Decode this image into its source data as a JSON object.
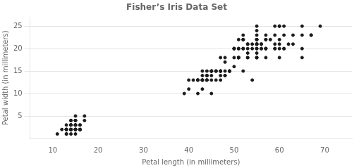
{
  "chart_data": {
    "type": "scatter",
    "title": "Fisher’s Iris Data Set",
    "xlabel": "Petal length (in millimeters)",
    "ylabel": "Petal width (in millimeters)",
    "xlim": [
      5,
      76
    ],
    "ylim": [
      0,
      27
    ],
    "xticks": [
      10,
      20,
      30,
      40,
      50,
      60,
      70
    ],
    "yticks": [
      5,
      10,
      15,
      20,
      25
    ],
    "grid": "y",
    "color": "#1a1a1a",
    "x": [
      14,
      14,
      13,
      15,
      14,
      17,
      14,
      15,
      14,
      15,
      15,
      16,
      14,
      11,
      13,
      15,
      14,
      17,
      15,
      15,
      13,
      15,
      16,
      14,
      15,
      12,
      13,
      15,
      15,
      13,
      14,
      16,
      13,
      14,
      16,
      14,
      15,
      15,
      13,
      14,
      14,
      14,
      16,
      13,
      15,
      16,
      16,
      15,
      15,
      14,
      47,
      45,
      49,
      41,
      48,
      43,
      46,
      40,
      45,
      42,
      39,
      45,
      40,
      46,
      44,
      48,
      49,
      43,
      49,
      43,
      47,
      45,
      45,
      43,
      44,
      46,
      47,
      48,
      43,
      46,
      44,
      50,
      47,
      45,
      42,
      44,
      42,
      44,
      48,
      44,
      49,
      45,
      42,
      43,
      44,
      45,
      47,
      47,
      43,
      48,
      60,
      57,
      56,
      55,
      55,
      52,
      52,
      55,
      60,
      55,
      55,
      50,
      55,
      52,
      53,
      56,
      53,
      51,
      53,
      51,
      52,
      51,
      53,
      55,
      58,
      55,
      51,
      55,
      50,
      51,
      53,
      55,
      55,
      54,
      53,
      50,
      52,
      60,
      57,
      54,
      56,
      47,
      55,
      55,
      55,
      50,
      57,
      59,
      61,
      56,
      57,
      51,
      55,
      55,
      57,
      61,
      59,
      65,
      67,
      60,
      65,
      69,
      61,
      51,
      65,
      59,
      57,
      60,
      52,
      67,
      61,
      65,
      63,
      60,
      59,
      63,
      54,
      57,
      62,
      59
    ],
    "values": [
      2,
      2,
      1,
      2,
      2,
      4,
      3,
      2,
      2,
      1,
      2,
      2,
      1,
      1,
      1,
      4,
      4,
      5,
      4,
      3,
      2,
      5,
      2,
      3,
      4,
      2,
      2,
      3,
      2,
      2,
      2,
      3,
      3,
      3,
      2,
      4,
      2,
      2,
      2,
      2,
      3,
      2,
      3,
      2,
      3,
      2,
      2,
      2,
      3,
      2,
      14,
      15,
      15,
      13,
      15,
      13,
      15,
      13,
      14,
      13,
      10,
      15,
      11,
      15,
      14,
      17,
      15,
      11,
      15,
      15,
      13,
      10,
      15,
      13,
      14,
      13,
      15,
      14,
      13,
      15,
      14,
      20,
      15,
      15,
      13,
      13,
      13,
      13,
      14,
      13,
      15,
      13,
      10,
      13,
      15,
      15,
      15,
      15,
      14,
      18,
      25,
      18,
      21,
      20,
      24,
      20,
      23,
      22,
      22,
      19,
      20,
      18,
      22,
      20,
      19,
      21,
      21,
      22,
      20,
      18,
      22,
      20,
      21,
      18,
      22,
      18,
      18,
      21,
      16,
      20,
      18,
      25,
      23,
      20,
      18,
      20,
      15,
      25,
      20,
      21,
      20,
      18,
      21,
      21,
      22,
      20,
      20,
      21,
      25,
      20,
      22,
      18,
      18,
      21,
      22,
      23,
      25,
      23,
      23,
      20,
      18,
      25,
      20,
      18,
      20,
      23,
      20,
      21,
      22,
      23,
      20,
      25,
      23,
      18,
      20,
      21,
      13,
      23,
      21,
      20
    ]
  }
}
